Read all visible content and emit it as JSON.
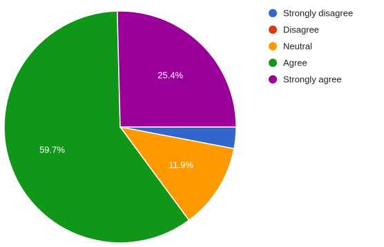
{
  "chart_data": {
    "type": "pie",
    "legend_position": "right",
    "slices": [
      {
        "name": "Strongly disagree",
        "value": 3.0,
        "color": "#3366cc",
        "label": ""
      },
      {
        "name": "Disagree",
        "value": 0.0,
        "color": "#dc3912",
        "label": ""
      },
      {
        "name": "Neutral",
        "value": 11.9,
        "color": "#ff9900",
        "label": "11.9%"
      },
      {
        "name": "Agree",
        "value": 59.7,
        "color": "#109618",
        "label": "59.7%"
      },
      {
        "name": "Strongly agree",
        "value": 25.4,
        "color": "#990099",
        "label": "25.4%"
      }
    ]
  }
}
